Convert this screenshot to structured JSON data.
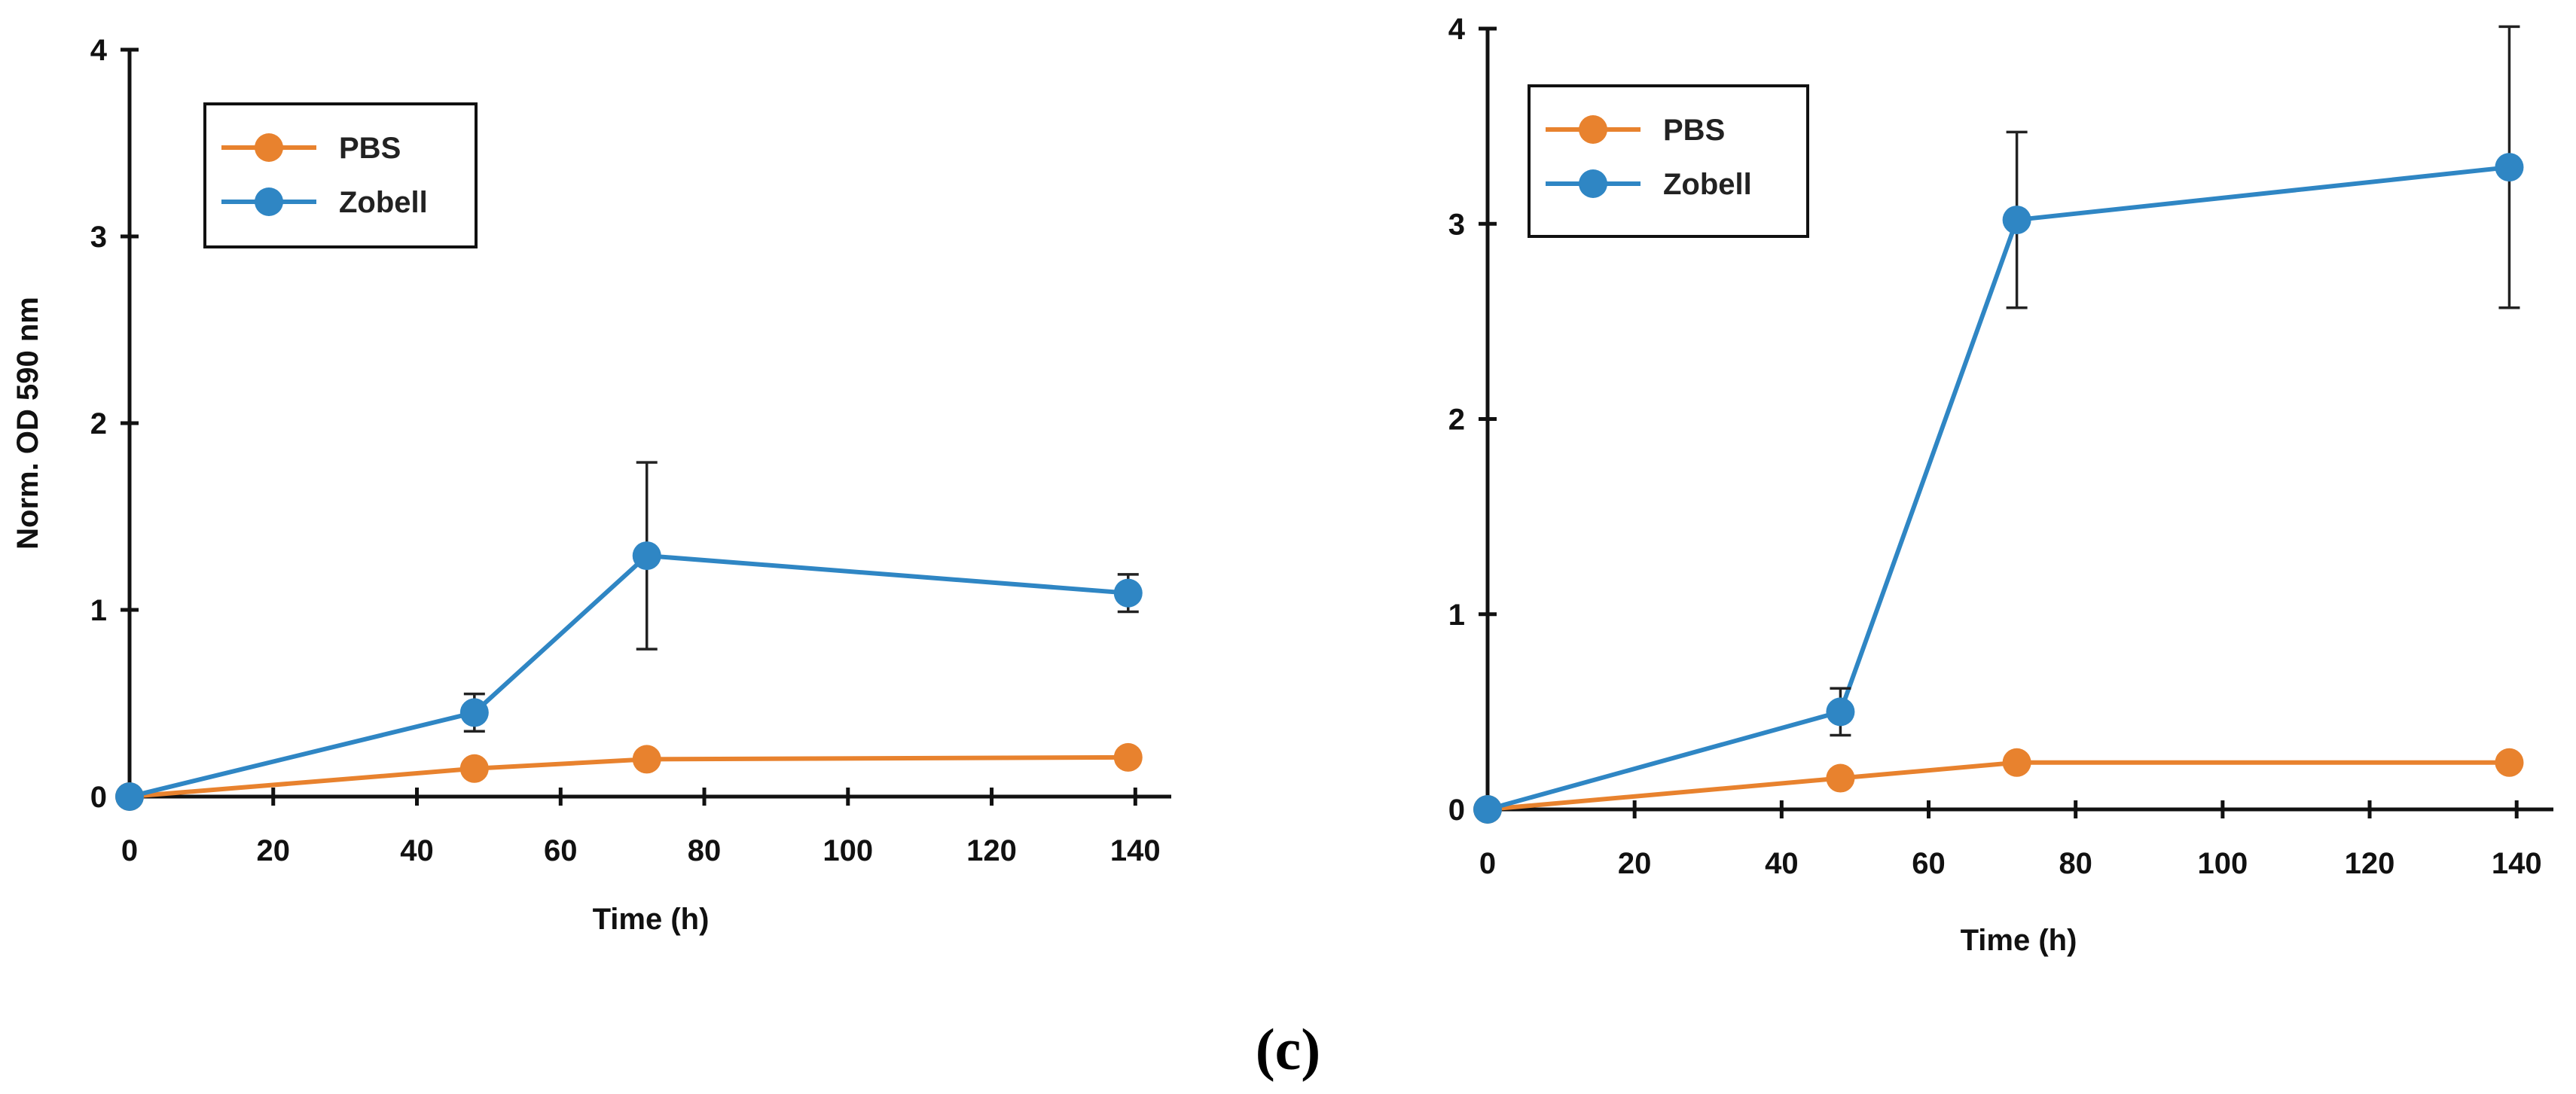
{
  "caption": "(c)",
  "colors": {
    "pbs": "#E8822E",
    "zobell": "#2F86C4",
    "axis": "#111111",
    "error_bar": "#222222"
  },
  "chart_data": [
    {
      "type": "line",
      "title": "",
      "xlabel": "Time (h)",
      "ylabel": "Norm. OD 590 nm",
      "xlim": [
        0,
        145
      ],
      "ylim": [
        0,
        4
      ],
      "xticks": [
        0,
        20,
        40,
        60,
        80,
        100,
        120,
        140
      ],
      "yticks": [
        0,
        1,
        2,
        3,
        4
      ],
      "legend": "top-left",
      "grid": false,
      "x": [
        0,
        48,
        72,
        139
      ],
      "series": [
        {
          "name": "PBS",
          "values": [
            0,
            0.15,
            0.2,
            0.21
          ],
          "errors": [
            0,
            0,
            0,
            0
          ]
        },
        {
          "name": "Zobell",
          "values": [
            0,
            0.45,
            1.29,
            1.09
          ],
          "errors": [
            0,
            0.1,
            0.5,
            0.1
          ]
        }
      ]
    },
    {
      "type": "line",
      "title": "",
      "xlabel": "Time (h)",
      "ylabel": "",
      "xlim": [
        0,
        145
      ],
      "ylim": [
        0,
        4
      ],
      "xticks": [
        0,
        20,
        40,
        60,
        80,
        100,
        120,
        140
      ],
      "yticks": [
        0,
        1,
        2,
        3,
        4
      ],
      "legend": "top-left",
      "grid": false,
      "x": [
        0,
        48,
        72,
        139
      ],
      "series": [
        {
          "name": "PBS",
          "values": [
            0,
            0.16,
            0.24,
            0.24
          ],
          "errors": [
            0,
            0,
            0,
            0
          ]
        },
        {
          "name": "Zobell",
          "values": [
            0,
            0.5,
            3.02,
            3.29
          ],
          "errors": [
            0,
            0.12,
            0.45,
            0.72
          ]
        }
      ]
    }
  ]
}
